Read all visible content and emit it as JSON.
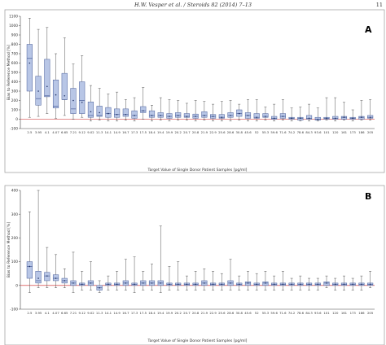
{
  "header": {
    "journal": "H.W. Vesper et al. / Steroids 82 (2014) 7–13",
    "page_number": "11"
  },
  "colors": {
    "box_fill": "#b8c6e6",
    "box_stroke": "#4a5f9a",
    "whisker": "#555555",
    "zero_line": "#cc2222",
    "frame": "#999999"
  },
  "chart_data": [
    {
      "type": "box",
      "panel_label": "A",
      "xlabel": "Target Value of Single Donor Patient Samples [pg/ml]",
      "ylabel": "Bias to Reference Method [%]",
      "ylim": [
        -100,
        1100
      ],
      "yticks": [
        -100,
        0,
        100,
        200,
        300,
        400,
        500,
        600,
        700,
        800,
        900,
        1000,
        1100
      ],
      "grid": false,
      "reference_line": 0,
      "categories": [
        "2.5",
        "3.95",
        "4.1",
        "4.07",
        "6.65",
        "7.21",
        "9.12",
        "9.02",
        "11.3",
        "14.1",
        "14.9",
        "16.7",
        "17.3",
        "17.5",
        "18.4",
        "19.4",
        "19.9",
        "20.2",
        "20.7",
        "20.8",
        "21.9",
        "22.9",
        "25.6",
        "28.6",
        "30.8",
        "45.6",
        "52",
        "55.3",
        "59.6",
        "71.6",
        "74.2",
        "78.6",
        "84.3",
        "93.6",
        "101",
        "120",
        "161",
        "173",
        "186",
        "205"
      ],
      "boxes": [
        {
          "min": 20,
          "q1": 300,
          "median": 650,
          "q3": 800,
          "max": 1080,
          "mean": 600
        },
        {
          "min": 30,
          "q1": 150,
          "median": 220,
          "q3": 460,
          "max": 960,
          "mean": 300
        },
        {
          "min": 60,
          "q1": 240,
          "median": 250,
          "q3": 640,
          "max": 980,
          "mean": 350
        },
        {
          "min": 10,
          "q1": 120,
          "median": 140,
          "q3": 420,
          "max": 700,
          "mean": 260
        },
        {
          "min": 40,
          "q1": 210,
          "median": 210,
          "q3": 490,
          "max": 870,
          "mean": 250
        },
        {
          "min": 0,
          "q1": 60,
          "median": 110,
          "q3": 330,
          "max": 590,
          "mean": 200
        },
        {
          "min": 20,
          "q1": 60,
          "median": 200,
          "q3": 400,
          "max": 680,
          "mean": 180
        },
        {
          "min": -20,
          "q1": 20,
          "median": 40,
          "q3": 185,
          "max": 360,
          "mean": 80
        },
        {
          "min": -10,
          "q1": 30,
          "median": 40,
          "q3": 140,
          "max": 330,
          "mean": 70
        },
        {
          "min": -20,
          "q1": 20,
          "median": 60,
          "q3": 125,
          "max": 270,
          "mean": 60
        },
        {
          "min": -20,
          "q1": 20,
          "median": 50,
          "q3": 110,
          "max": 290,
          "mean": 50
        },
        {
          "min": -10,
          "q1": 30,
          "median": 50,
          "q3": 110,
          "max": 210,
          "mean": 50
        },
        {
          "min": -20,
          "q1": 10,
          "median": 40,
          "q3": 90,
          "max": 230,
          "mean": 40
        },
        {
          "min": 0,
          "q1": 70,
          "median": 90,
          "q3": 135,
          "max": 340,
          "mean": 90
        },
        {
          "min": -20,
          "q1": 20,
          "median": 40,
          "q3": 90,
          "max": 150,
          "mean": 40
        },
        {
          "min": -10,
          "q1": 20,
          "median": 40,
          "q3": 70,
          "max": 230,
          "mean": 40
        },
        {
          "min": -20,
          "q1": 10,
          "median": 30,
          "q3": 60,
          "max": 210,
          "mean": 30
        },
        {
          "min": -10,
          "q1": 20,
          "median": 40,
          "q3": 70,
          "max": 200,
          "mean": 40
        },
        {
          "min": -10,
          "q1": 20,
          "median": 30,
          "q3": 60,
          "max": 170,
          "mean": 30
        },
        {
          "min": -20,
          "q1": 10,
          "median": 30,
          "q3": 55,
          "max": 200,
          "mean": 30
        },
        {
          "min": -10,
          "q1": 20,
          "median": 40,
          "q3": 80,
          "max": 190,
          "mean": 40
        },
        {
          "min": -20,
          "q1": 10,
          "median": 30,
          "q3": 50,
          "max": 160,
          "mean": 30
        },
        {
          "min": -20,
          "q1": 10,
          "median": 20,
          "q3": 50,
          "max": 190,
          "mean": 20
        },
        {
          "min": -20,
          "q1": 20,
          "median": 40,
          "q3": 70,
          "max": 200,
          "mean": 40
        },
        {
          "min": -10,
          "q1": 30,
          "median": 60,
          "q3": 100,
          "max": 160,
          "mean": 60
        },
        {
          "min": -20,
          "q1": 10,
          "median": 40,
          "q3": 70,
          "max": 210,
          "mean": 40
        },
        {
          "min": -20,
          "q1": 10,
          "median": 20,
          "q3": 60,
          "max": 210,
          "mean": 20
        },
        {
          "min": -10,
          "q1": 20,
          "median": 30,
          "q3": 60,
          "max": 130,
          "mean": 30
        },
        {
          "min": -20,
          "q1": 0,
          "median": 10,
          "q3": 30,
          "max": 160,
          "mean": 10
        },
        {
          "min": -10,
          "q1": 10,
          "median": 30,
          "q3": 60,
          "max": 210,
          "mean": 30
        },
        {
          "min": -20,
          "q1": 0,
          "median": 10,
          "q3": 20,
          "max": 120,
          "mean": 10
        },
        {
          "min": -20,
          "q1": -10,
          "median": 10,
          "q3": 20,
          "max": 130,
          "mean": 10
        },
        {
          "min": -20,
          "q1": 0,
          "median": 10,
          "q3": 40,
          "max": 160,
          "mean": 10
        },
        {
          "min": -20,
          "q1": -10,
          "median": 0,
          "q3": 20,
          "max": 120,
          "mean": 0
        },
        {
          "min": -10,
          "q1": 0,
          "median": 10,
          "q3": 20,
          "max": 230,
          "mean": 10
        },
        {
          "min": -20,
          "q1": 0,
          "median": 10,
          "q3": 30,
          "max": 230,
          "mean": 10
        },
        {
          "min": -10,
          "q1": 0,
          "median": 20,
          "q3": 30,
          "max": 180,
          "mean": 20
        },
        {
          "min": -20,
          "q1": 0,
          "median": 10,
          "q3": 20,
          "max": 100,
          "mean": 10
        },
        {
          "min": -10,
          "q1": 0,
          "median": 20,
          "q3": 30,
          "max": 200,
          "mean": 20
        },
        {
          "min": -10,
          "q1": 10,
          "median": 20,
          "q3": 40,
          "max": 210,
          "mean": 20
        }
      ]
    },
    {
      "type": "box",
      "panel_label": "B",
      "xlabel": "Target Value of Single Donor Patient Samples [pg/ml]",
      "ylabel": "Bias to Reference Method [%]",
      "ylim": [
        -100,
        400
      ],
      "yticks": [
        -100,
        0,
        100,
        200,
        300,
        400
      ],
      "grid": false,
      "reference_line": 0,
      "categories": [
        "2.5",
        "3.95",
        "4.1",
        "4.07",
        "6.65",
        "7.21",
        "9.12",
        "9.02",
        "11.3",
        "14.1",
        "14.9",
        "16.7",
        "17.3",
        "17.5",
        "18.4",
        "19.4",
        "19.9",
        "20.2",
        "20.7",
        "20.8",
        "21.9",
        "22.9",
        "25.6",
        "28.6",
        "30.8",
        "45.6",
        "52",
        "55.3",
        "59.6",
        "71.6",
        "74.2",
        "78.6",
        "84.3",
        "93.6",
        "101",
        "120",
        "161",
        "173",
        "186",
        "205"
      ],
      "boxes": [
        {
          "min": -30,
          "q1": 30,
          "median": 80,
          "q3": 100,
          "max": 310,
          "mean": 80
        },
        {
          "min": -10,
          "q1": 10,
          "median": 20,
          "q3": 60,
          "max": 400,
          "mean": 30
        },
        {
          "min": -10,
          "q1": 20,
          "median": 40,
          "q3": 55,
          "max": 160,
          "mean": 40
        },
        {
          "min": -10,
          "q1": 20,
          "median": 30,
          "q3": 45,
          "max": 130,
          "mean": 30
        },
        {
          "min": -10,
          "q1": 10,
          "median": 20,
          "q3": 30,
          "max": 70,
          "mean": 20
        },
        {
          "min": -30,
          "q1": 0,
          "median": 10,
          "q3": 20,
          "max": 140,
          "mean": 10
        },
        {
          "min": -20,
          "q1": 0,
          "median": 5,
          "q3": 10,
          "max": 60,
          "mean": 5
        },
        {
          "min": -20,
          "q1": 0,
          "median": 10,
          "q3": 20,
          "max": 100,
          "mean": 10
        },
        {
          "min": -30,
          "q1": -20,
          "median": -10,
          "q3": 0,
          "max": 20,
          "mean": -10
        },
        {
          "min": -20,
          "q1": 0,
          "median": 5,
          "q3": 10,
          "max": 40,
          "mean": 5
        },
        {
          "min": -20,
          "q1": 0,
          "median": 5,
          "q3": 10,
          "max": 60,
          "mean": 5
        },
        {
          "min": -20,
          "q1": 0,
          "median": 10,
          "q3": 20,
          "max": 110,
          "mean": 10
        },
        {
          "min": -30,
          "q1": 0,
          "median": 5,
          "q3": 10,
          "max": 120,
          "mean": 5
        },
        {
          "min": -20,
          "q1": 0,
          "median": 10,
          "q3": 20,
          "max": 60,
          "mean": 10
        },
        {
          "min": -20,
          "q1": 0,
          "median": 10,
          "q3": 20,
          "max": 90,
          "mean": 10
        },
        {
          "min": -30,
          "q1": 0,
          "median": 10,
          "q3": 20,
          "max": 250,
          "mean": 10
        },
        {
          "min": -20,
          "q1": 0,
          "median": 5,
          "q3": 10,
          "max": 80,
          "mean": 5
        },
        {
          "min": -20,
          "q1": 0,
          "median": 5,
          "q3": 10,
          "max": 100,
          "mean": 5
        },
        {
          "min": -20,
          "q1": 0,
          "median": 5,
          "q3": 10,
          "max": 40,
          "mean": 5
        },
        {
          "min": -20,
          "q1": 0,
          "median": 5,
          "q3": 10,
          "max": 60,
          "mean": 5
        },
        {
          "min": -20,
          "q1": 0,
          "median": 10,
          "q3": 20,
          "max": 70,
          "mean": 10
        },
        {
          "min": -20,
          "q1": 0,
          "median": 5,
          "q3": 10,
          "max": 60,
          "mean": 5
        },
        {
          "min": -20,
          "q1": 0,
          "median": 5,
          "q3": 10,
          "max": 50,
          "mean": 5
        },
        {
          "min": -20,
          "q1": 0,
          "median": 10,
          "q3": 20,
          "max": 110,
          "mean": 10
        },
        {
          "min": -20,
          "q1": 0,
          "median": 5,
          "q3": 10,
          "max": 40,
          "mean": 5
        },
        {
          "min": -20,
          "q1": 0,
          "median": 10,
          "q3": 15,
          "max": 60,
          "mean": 10
        },
        {
          "min": -20,
          "q1": 0,
          "median": 5,
          "q3": 10,
          "max": 50,
          "mean": 5
        },
        {
          "min": -20,
          "q1": 0,
          "median": 10,
          "q3": 15,
          "max": 60,
          "mean": 10
        },
        {
          "min": -20,
          "q1": 0,
          "median": 5,
          "q3": 10,
          "max": 40,
          "mean": 5
        },
        {
          "min": -20,
          "q1": 0,
          "median": 5,
          "q3": 10,
          "max": 60,
          "mean": 5
        },
        {
          "min": -20,
          "q1": 0,
          "median": 5,
          "q3": 10,
          "max": 30,
          "mean": 5
        },
        {
          "min": -20,
          "q1": 0,
          "median": 5,
          "q3": 10,
          "max": 40,
          "mean": 5
        },
        {
          "min": -20,
          "q1": 0,
          "median": 5,
          "q3": 10,
          "max": 30,
          "mean": 5
        },
        {
          "min": -20,
          "q1": 0,
          "median": 5,
          "q3": 10,
          "max": 30,
          "mean": 5
        },
        {
          "min": -10,
          "q1": 0,
          "median": 10,
          "q3": 15,
          "max": 40,
          "mean": 10
        },
        {
          "min": -20,
          "q1": 0,
          "median": 5,
          "q3": 10,
          "max": 30,
          "mean": 5
        },
        {
          "min": -20,
          "q1": 0,
          "median": 5,
          "q3": 10,
          "max": 40,
          "mean": 5
        },
        {
          "min": -20,
          "q1": 0,
          "median": 5,
          "q3": 10,
          "max": 30,
          "mean": 5
        },
        {
          "min": -20,
          "q1": 0,
          "median": 5,
          "q3": 10,
          "max": 40,
          "mean": 5
        },
        {
          "min": -10,
          "q1": 0,
          "median": 5,
          "q3": 10,
          "max": 60,
          "mean": 5
        }
      ]
    }
  ]
}
